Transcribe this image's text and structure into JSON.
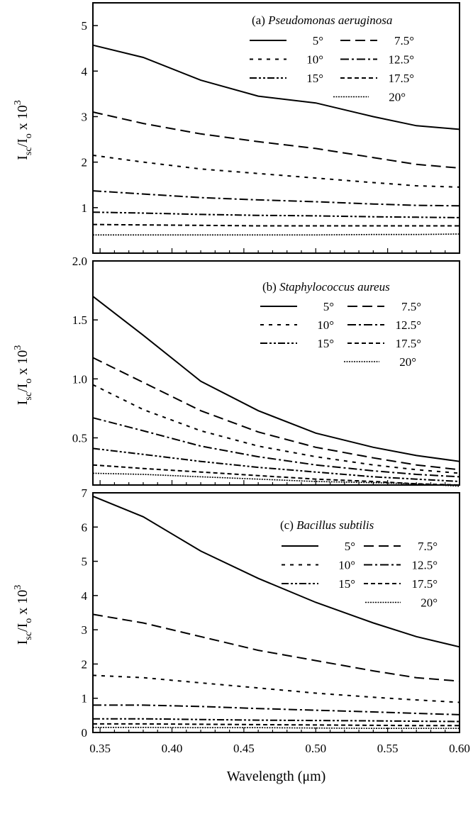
{
  "chart_data": [
    {
      "type": "line",
      "panel": "a",
      "title_prefix": "(a) ",
      "title_species": "Pseudomonas aeruginosa",
      "xlabel": "",
      "ylabel": "I_sc/I_o x 10^3",
      "xlim": [
        0.345,
        0.6
      ],
      "ylim": [
        0,
        5.5
      ],
      "yticks": [
        1,
        2,
        3,
        4,
        5
      ],
      "ytick_labels": [
        "1",
        "2",
        "3",
        "4",
        "5"
      ],
      "x": [
        0.345,
        0.38,
        0.42,
        0.46,
        0.5,
        0.54,
        0.57,
        0.6
      ],
      "series": [
        {
          "name": "5°",
          "values": [
            4.57,
            4.3,
            3.8,
            3.45,
            3.3,
            3.0,
            2.8,
            2.72
          ]
        },
        {
          "name": "7.5°",
          "values": [
            3.1,
            2.85,
            2.62,
            2.45,
            2.3,
            2.1,
            1.95,
            1.87
          ]
        },
        {
          "name": "10°",
          "values": [
            2.15,
            2.0,
            1.85,
            1.75,
            1.65,
            1.55,
            1.48,
            1.45
          ]
        },
        {
          "name": "12.5°",
          "values": [
            1.37,
            1.3,
            1.22,
            1.17,
            1.13,
            1.08,
            1.05,
            1.04
          ]
        },
        {
          "name": "15°",
          "values": [
            0.9,
            0.88,
            0.85,
            0.83,
            0.82,
            0.8,
            0.79,
            0.78
          ]
        },
        {
          "name": "17.5°",
          "values": [
            0.63,
            0.62,
            0.61,
            0.6,
            0.6,
            0.6,
            0.6,
            0.6
          ]
        },
        {
          "name": "20°",
          "values": [
            0.4,
            0.4,
            0.4,
            0.4,
            0.4,
            0.41,
            0.41,
            0.42
          ]
        }
      ]
    },
    {
      "type": "line",
      "panel": "b",
      "title_prefix": "(b) ",
      "title_species": "Staphylococcus aureus",
      "xlabel": "",
      "ylabel": "I_sc/I_o x 10^3",
      "xlim": [
        0.345,
        0.6
      ],
      "ylim": [
        0.1,
        2.0
      ],
      "yticks": [
        0.5,
        1.0,
        1.5,
        2.0
      ],
      "ytick_labels": [
        "0.5",
        "1.0",
        "1.5",
        "2.0"
      ],
      "x": [
        0.345,
        0.38,
        0.42,
        0.46,
        0.5,
        0.54,
        0.57,
        0.6
      ],
      "series": [
        {
          "name": "5°",
          "values": [
            1.7,
            1.37,
            0.98,
            0.73,
            0.54,
            0.42,
            0.35,
            0.3
          ]
        },
        {
          "name": "7.5°",
          "values": [
            1.18,
            0.97,
            0.73,
            0.55,
            0.42,
            0.33,
            0.27,
            0.23
          ]
        },
        {
          "name": "10°",
          "values": [
            0.95,
            0.74,
            0.56,
            0.43,
            0.34,
            0.27,
            0.23,
            0.2
          ]
        },
        {
          "name": "12.5°",
          "values": [
            0.67,
            0.56,
            0.43,
            0.34,
            0.27,
            0.22,
            0.19,
            0.17
          ]
        },
        {
          "name": "15°",
          "values": [
            0.41,
            0.36,
            0.3,
            0.25,
            0.21,
            0.17,
            0.15,
            0.13
          ]
        },
        {
          "name": "17.5°",
          "values": [
            0.27,
            0.24,
            0.21,
            0.18,
            0.15,
            0.13,
            0.11,
            0.1
          ]
        },
        {
          "name": "20°",
          "values": [
            0.2,
            0.19,
            0.17,
            0.15,
            0.13,
            0.12,
            0.11,
            0.09
          ]
        }
      ]
    },
    {
      "type": "line",
      "panel": "c",
      "title_prefix": "(c) ",
      "title_species": "Bacillus subtilis",
      "xlabel": "Wavelength (μm)",
      "ylabel": "I_sc/I_o x 10^3",
      "xlim": [
        0.345,
        0.6
      ],
      "ylim": [
        0,
        7
      ],
      "yticks": [
        0,
        1,
        2,
        3,
        4,
        5,
        6,
        7
      ],
      "ytick_labels": [
        "0",
        "1",
        "2",
        "3",
        "4",
        "5",
        "6",
        "7"
      ],
      "xticks": [
        0.35,
        0.4,
        0.45,
        0.5,
        0.55,
        0.6
      ],
      "xtick_labels": [
        "0.35",
        "0.40",
        "0.45",
        "0.50",
        "0.55",
        "0.60"
      ],
      "x": [
        0.345,
        0.38,
        0.42,
        0.46,
        0.5,
        0.54,
        0.57,
        0.6
      ],
      "series": [
        {
          "name": "5°",
          "values": [
            6.9,
            6.3,
            5.3,
            4.5,
            3.8,
            3.2,
            2.8,
            2.5
          ]
        },
        {
          "name": "7.5°",
          "values": [
            3.45,
            3.2,
            2.8,
            2.4,
            2.1,
            1.8,
            1.6,
            1.5
          ]
        },
        {
          "name": "10°",
          "values": [
            1.67,
            1.6,
            1.45,
            1.3,
            1.15,
            1.03,
            0.95,
            0.88
          ]
        },
        {
          "name": "12.5°",
          "values": [
            0.8,
            0.8,
            0.76,
            0.7,
            0.65,
            0.6,
            0.56,
            0.52
          ]
        },
        {
          "name": "15°",
          "values": [
            0.4,
            0.4,
            0.38,
            0.36,
            0.35,
            0.34,
            0.33,
            0.32
          ]
        },
        {
          "name": "17.5°",
          "values": [
            0.25,
            0.25,
            0.24,
            0.23,
            0.22,
            0.21,
            0.2,
            0.2
          ]
        },
        {
          "name": "20°",
          "values": [
            0.15,
            0.15,
            0.14,
            0.14,
            0.13,
            0.12,
            0.12,
            0.12
          ]
        }
      ]
    }
  ],
  "line_color": "#000000"
}
